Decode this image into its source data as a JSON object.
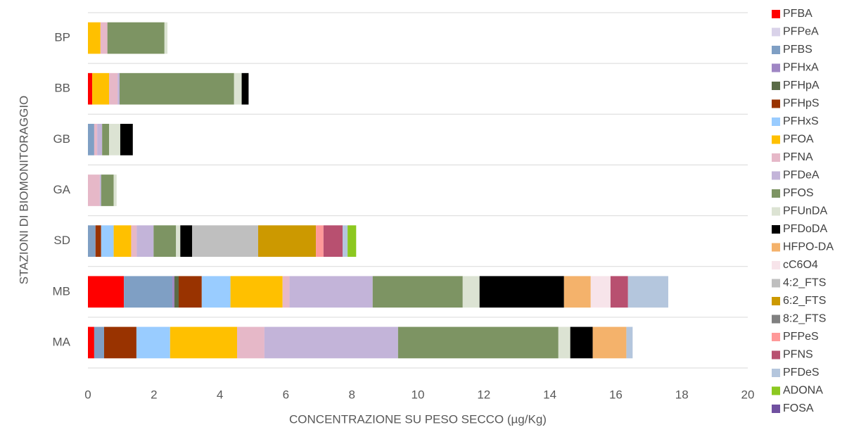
{
  "chart_data": {
    "type": "stacked-bar-horizontal",
    "xlabel": "CONCENTRAZIONE SU PESO SECCO (µg/Kg)",
    "ylabel": "STAZIONI DI BIOMONITORAGGIO",
    "categories": [
      "BP",
      "BB",
      "GB",
      "GA",
      "SD",
      "MB",
      "MA"
    ],
    "xlim": [
      0,
      20
    ],
    "xticks": [
      0,
      2,
      4,
      6,
      8,
      10,
      12,
      14,
      16,
      18,
      20
    ],
    "legend": "right",
    "series": [
      {
        "name": "PFBA",
        "color": "#ff0000",
        "values": [
          0,
          0.13,
          0,
          0,
          0,
          1.09,
          0.19
        ]
      },
      {
        "name": "PFPeA",
        "color": "#d9d2e9",
        "values": [
          0,
          0,
          0,
          0,
          0,
          0,
          0
        ]
      },
      {
        "name": "PFBS",
        "color": "#7f9fc4",
        "values": [
          0,
          0,
          0.19,
          0,
          0.23,
          1.47,
          0.3
        ]
      },
      {
        "name": "PFHxA",
        "color": "#9f86c4",
        "values": [
          0,
          0,
          0,
          0,
          0,
          0.06,
          0
        ]
      },
      {
        "name": "PFHpA",
        "color": "#5a6b47",
        "values": [
          0,
          0,
          0,
          0,
          0,
          0.13,
          0
        ]
      },
      {
        "name": "PFHpS",
        "color": "#993300",
        "values": [
          0,
          0,
          0,
          0,
          0.17,
          0.7,
          0.98
        ]
      },
      {
        "name": "PFHxS",
        "color": "#99ccff",
        "values": [
          0,
          0,
          0,
          0,
          0.38,
          0.87,
          1.02
        ]
      },
      {
        "name": "PFOA",
        "color": "#ffc000",
        "values": [
          0.38,
          0.51,
          0,
          0,
          0.53,
          1.58,
          2.03
        ]
      },
      {
        "name": "PFNA",
        "color": "#e6b8c8",
        "values": [
          0.21,
          0.26,
          0.09,
          0.36,
          0.17,
          0.21,
          0.83
        ]
      },
      {
        "name": "PFDeA",
        "color": "#c3b4d9",
        "values": [
          0,
          0.06,
          0.15,
          0.04,
          0.51,
          2.52,
          4.05
        ]
      },
      {
        "name": "PFOS",
        "color": "#7d9463",
        "values": [
          1.73,
          3.47,
          0.21,
          0.38,
          0.68,
          2.73,
          4.86
        ]
      },
      {
        "name": "PFUnDA",
        "color": "#dce3d3",
        "values": [
          0.09,
          0.23,
          0.34,
          0.09,
          0.13,
          0.51,
          0.36
        ]
      },
      {
        "name": "PFDoDA",
        "color": "#000000",
        "values": [
          0,
          0.21,
          0.38,
          0,
          0.36,
          2.56,
          0.68
        ]
      },
      {
        "name": "HFPO-DA",
        "color": "#f4b26b",
        "values": [
          0,
          0,
          0,
          0,
          0,
          0.81,
          1.02
        ]
      },
      {
        "name": "cC6O4",
        "color": "#f7e4ea",
        "values": [
          0,
          0,
          0,
          0,
          0,
          0.6,
          0
        ]
      },
      {
        "name": "4:2_FTS",
        "color": "#bfbfbf",
        "values": [
          0,
          0,
          0,
          0,
          2.0,
          0,
          0
        ]
      },
      {
        "name": "6:2_FTS",
        "color": "#cc9900",
        "values": [
          0,
          0,
          0,
          0,
          1.75,
          0,
          0
        ]
      },
      {
        "name": "8:2_FTS",
        "color": "#808080",
        "values": [
          0,
          0,
          0,
          0,
          0,
          0,
          0
        ]
      },
      {
        "name": "PFPeS",
        "color": "#ff9999",
        "values": [
          0,
          0,
          0,
          0,
          0.23,
          0,
          0
        ]
      },
      {
        "name": "PFNS",
        "color": "#b85070",
        "values": [
          0,
          0,
          0,
          0,
          0.58,
          0.53,
          0
        ]
      },
      {
        "name": "PFDeS",
        "color": "#b4c6dd",
        "values": [
          0,
          0,
          0,
          0,
          0.15,
          1.22,
          0.19
        ]
      },
      {
        "name": "ADONA",
        "color": "#8cc820",
        "values": [
          0,
          0,
          0,
          0,
          0.26,
          0,
          0
        ]
      },
      {
        "name": "FOSA",
        "color": "#7050a0",
        "values": [
          0,
          0,
          0,
          0,
          0,
          0,
          0
        ]
      }
    ]
  }
}
